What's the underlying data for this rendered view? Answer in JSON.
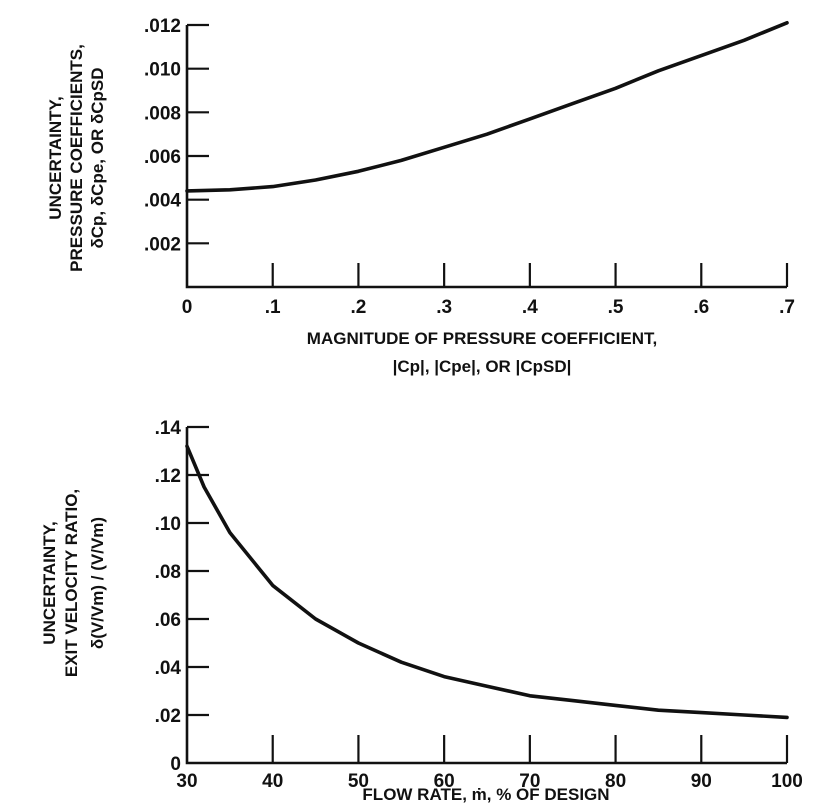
{
  "chart_data": [
    {
      "type": "line",
      "title": "",
      "xlabel": "MAGNITUDE OF PRESSURE COEFFICIENT,",
      "xlabel_line2": "|Cp|, |Cpe|, OR |CpSD|",
      "ylabel": "UNCERTAINTY,",
      "ylabel_line2": "PRESSURE COEFFICIENTS,",
      "ylabel_line3": "δCp, δCpe, OR δCpSD",
      "xlim": [
        0,
        0.7
      ],
      "ylim": [
        0,
        0.012
      ],
      "x_ticks": [
        0,
        0.1,
        0.2,
        0.3,
        0.4,
        0.5,
        0.6,
        0.7
      ],
      "x_tick_labels": [
        "0",
        ".1",
        ".2",
        ".3",
        ".4",
        ".5",
        ".6",
        ".7"
      ],
      "y_ticks": [
        0.002,
        0.004,
        0.006,
        0.008,
        0.01,
        0.012
      ],
      "y_tick_labels": [
        ".002",
        ".004",
        ".006",
        ".008",
        ".010",
        ".012"
      ],
      "grid": false,
      "series": [
        {
          "x": [
            0,
            0.05,
            0.1,
            0.15,
            0.2,
            0.25,
            0.3,
            0.35,
            0.4,
            0.45,
            0.5,
            0.55,
            0.6,
            0.65,
            0.7
          ],
          "y": [
            0.0044,
            0.00445,
            0.0046,
            0.0049,
            0.0053,
            0.0058,
            0.0064,
            0.007,
            0.0077,
            0.0084,
            0.0091,
            0.0099,
            0.0106,
            0.0113,
            0.0121
          ]
        }
      ]
    },
    {
      "type": "line",
      "title": "",
      "xlabel": "FLOW RATE, ṁ, % OF DESIGN",
      "ylabel": "UNCERTAINTY,",
      "ylabel_line2": "EXIT VELOCITY RATIO,",
      "ylabel_line3": "δ(V/Vm) / (V/Vm)",
      "xlim": [
        30,
        100
      ],
      "ylim": [
        0,
        0.14
      ],
      "x_ticks": [
        30,
        40,
        50,
        60,
        70,
        80,
        90,
        100
      ],
      "x_tick_labels": [
        "30",
        "40",
        "50",
        "60",
        "70",
        "80",
        "90",
        "100"
      ],
      "y_ticks": [
        0,
        0.02,
        0.04,
        0.06,
        0.08,
        0.1,
        0.12,
        0.14
      ],
      "y_tick_labels": [
        "0",
        ".02",
        ".04",
        ".06",
        ".08",
        ".10",
        ".12",
        ".14"
      ],
      "grid": false,
      "series": [
        {
          "x": [
            30,
            32,
            35,
            40,
            45,
            50,
            55,
            60,
            65,
            70,
            75,
            80,
            85,
            90,
            95,
            100
          ],
          "y": [
            0.132,
            0.115,
            0.096,
            0.074,
            0.06,
            0.05,
            0.042,
            0.036,
            0.032,
            0.028,
            0.026,
            0.024,
            0.022,
            0.021,
            0.02,
            0.019
          ]
        }
      ]
    }
  ]
}
